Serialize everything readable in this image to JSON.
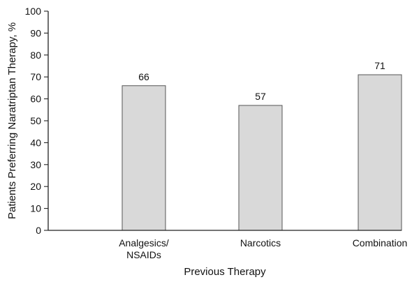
{
  "chart_data": {
    "type": "bar",
    "categories": [
      [
        "Analgesics/",
        "NSAIDs"
      ],
      [
        "Narcotics"
      ],
      [
        "Combination"
      ]
    ],
    "values": [
      66,
      57,
      71
    ],
    "data_labels": [
      "66",
      "57",
      "71"
    ],
    "xlabel": "Previous Therapy",
    "ylabel": "Patients Preferring Naratriptan Therapy, %",
    "ylim": [
      0,
      100
    ],
    "yticks": [
      0,
      10,
      20,
      30,
      40,
      50,
      60,
      70,
      80,
      90,
      100
    ],
    "grid": false,
    "bar_color": "#d9d9d9",
    "bar_edge_color": "#555555",
    "axis_color": "#222222"
  }
}
